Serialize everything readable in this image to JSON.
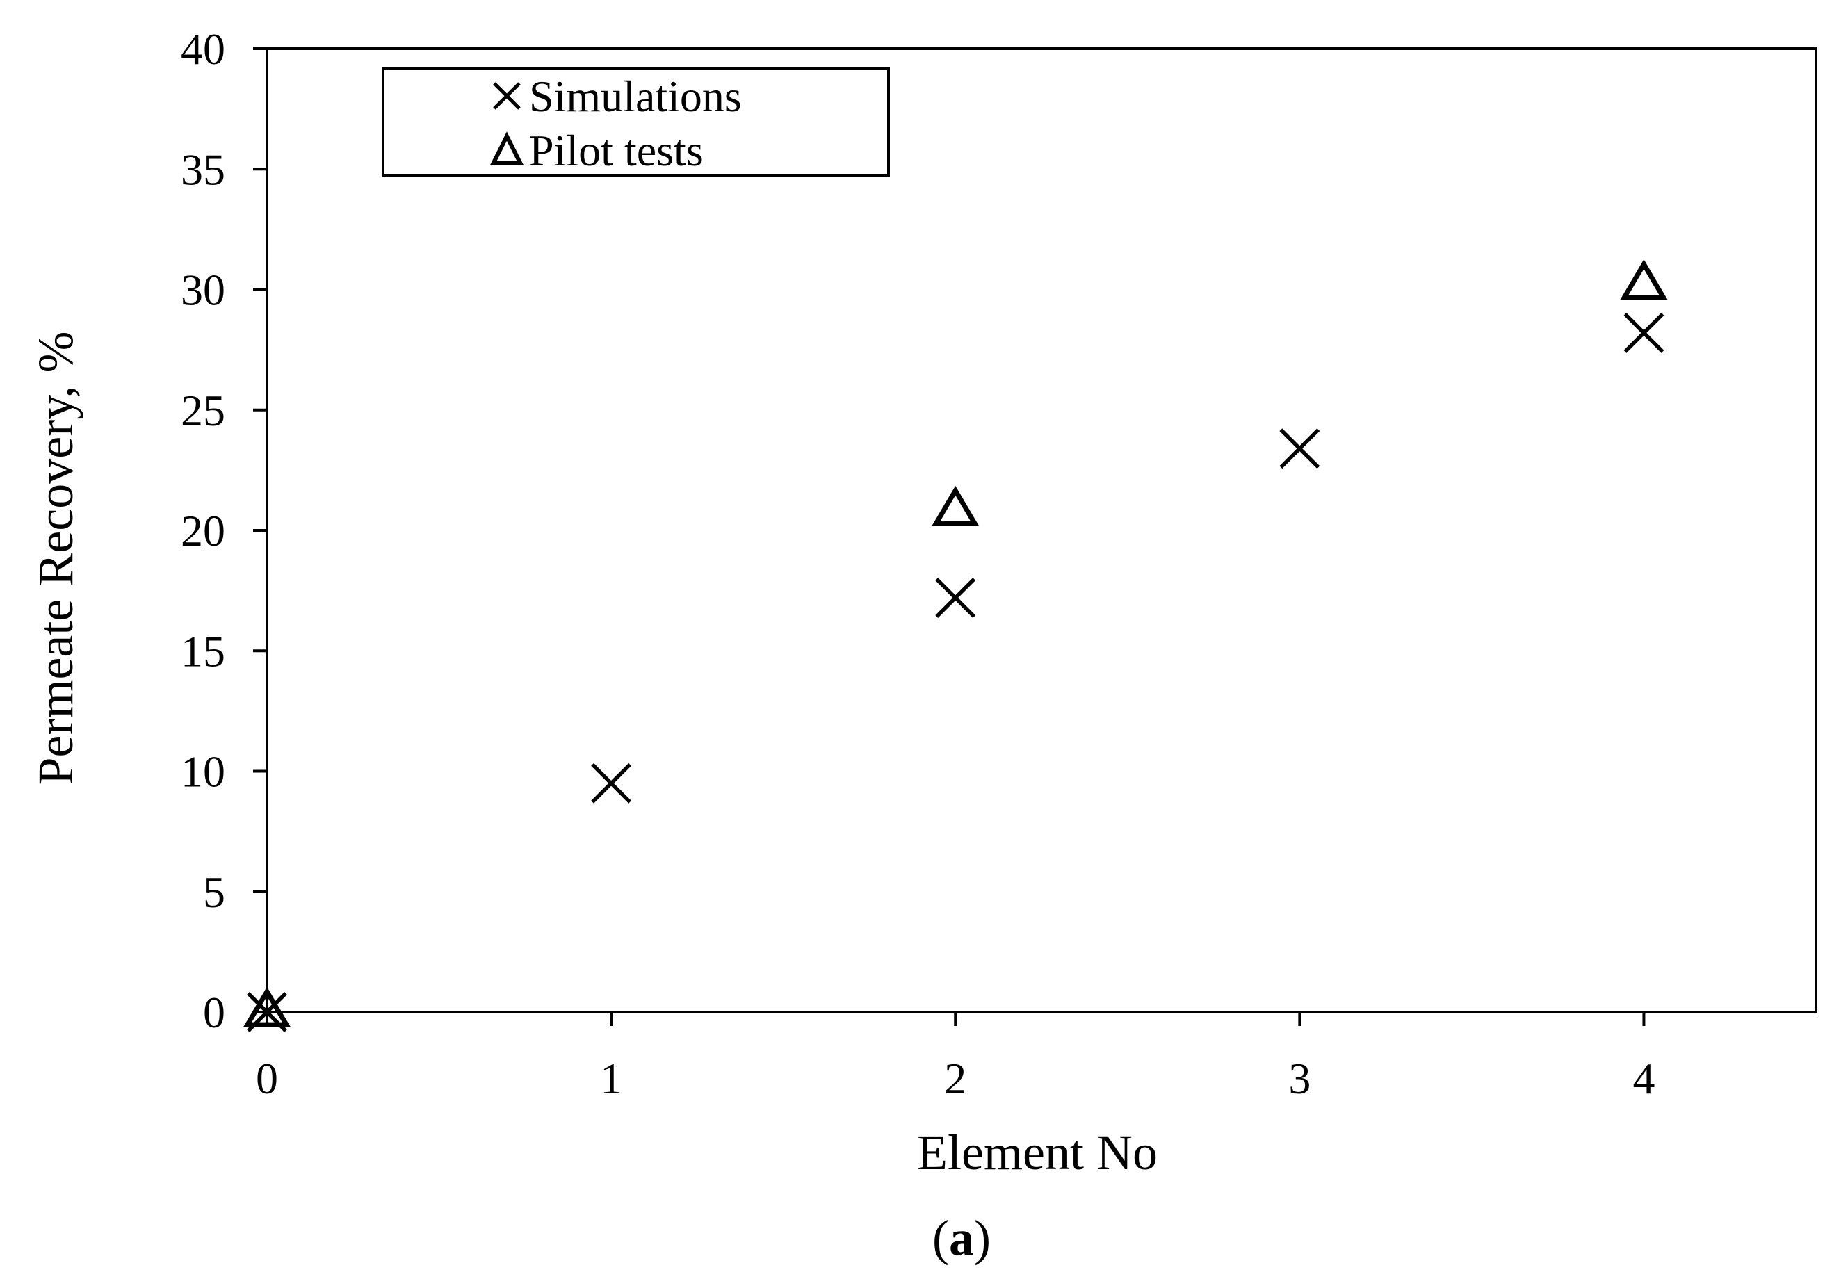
{
  "chart_data": {
    "type": "scatter",
    "xlabel": "Element No",
    "ylabel": "Permeate Recovery, %",
    "caption_open": "(",
    "caption_letter": "a",
    "caption_close": ")",
    "xlim": [
      0,
      4.5
    ],
    "ylim": [
      0,
      40
    ],
    "x_ticks": [
      0,
      1,
      2,
      3,
      4
    ],
    "y_ticks": [
      0,
      5,
      10,
      15,
      20,
      25,
      30,
      35,
      40
    ],
    "grid": false,
    "legend_position": "top-left",
    "series": [
      {
        "name": "Simulations",
        "marker": "x",
        "color": "#000000",
        "x": [
          0,
          1,
          2,
          3,
          4
        ],
        "y": [
          0,
          9.5,
          17.2,
          23.4,
          28.2
        ]
      },
      {
        "name": "Pilot tests",
        "marker": "triangle",
        "color": "#000000",
        "x": [
          0,
          2,
          4
        ],
        "y": [
          0,
          20.8,
          30.2
        ]
      }
    ]
  }
}
